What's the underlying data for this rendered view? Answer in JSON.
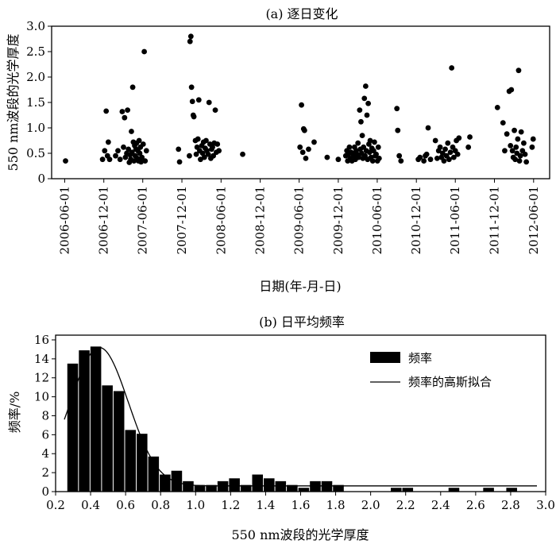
{
  "chart_data": [
    {
      "id": "a",
      "type": "scatter",
      "title": "(a) 逐日变化",
      "xlabel": "日期(年-月-日)",
      "ylabel": "550 nm波段的光学厚度",
      "x_axis_type": "date",
      "xlim": [
        "2006-04-01",
        "2012-08-15"
      ],
      "ylim": [
        0,
        3.0
      ],
      "x_ticks": [
        "2006-06-01",
        "2006-12-01",
        "2007-06-01",
        "2007-12-01",
        "2008-06-01",
        "2008-12-01",
        "2009-06-01",
        "2009-12-01",
        "2010-06-01",
        "2010-12-01",
        "2011-06-01",
        "2011-12-01",
        "2012-06-01"
      ],
      "y_ticks": [
        "0",
        "0.5",
        "1.0",
        "1.5",
        "2.0",
        "2.5",
        "3.0"
      ],
      "grid": false,
      "marker_color": "#000000",
      "points": [
        [
          "2006-06-05",
          0.35
        ],
        [
          "2006-11-25",
          0.38
        ],
        [
          "2006-12-05",
          0.55
        ],
        [
          "2006-12-12",
          1.33
        ],
        [
          "2006-12-18",
          0.45
        ],
        [
          "2006-12-22",
          0.72
        ],
        [
          "2006-12-28",
          0.38
        ],
        [
          "2007-01-25",
          0.45
        ],
        [
          "2007-02-05",
          0.55
        ],
        [
          "2007-02-15",
          0.38
        ],
        [
          "2007-02-25",
          1.32
        ],
        [
          "2007-03-03",
          0.62
        ],
        [
          "2007-03-08",
          1.2
        ],
        [
          "2007-03-12",
          0.42
        ],
        [
          "2007-03-18",
          0.5
        ],
        [
          "2007-03-22",
          1.35
        ],
        [
          "2007-03-26",
          0.58
        ],
        [
          "2007-03-30",
          0.32
        ],
        [
          "2007-04-03",
          0.47
        ],
        [
          "2007-04-06",
          0.38
        ],
        [
          "2007-04-09",
          0.93
        ],
        [
          "2007-04-12",
          0.52
        ],
        [
          "2007-04-15",
          1.8
        ],
        [
          "2007-04-18",
          0.72
        ],
        [
          "2007-04-21",
          0.35
        ],
        [
          "2007-04-24",
          0.65
        ],
        [
          "2007-04-27",
          0.45
        ],
        [
          "2007-04-30",
          0.58
        ],
        [
          "2007-05-03",
          0.7
        ],
        [
          "2007-05-06",
          0.4
        ],
        [
          "2007-05-09",
          0.55
        ],
        [
          "2007-05-12",
          0.35
        ],
        [
          "2007-05-15",
          0.75
        ],
        [
          "2007-05-18",
          0.5
        ],
        [
          "2007-05-21",
          0.62
        ],
        [
          "2007-05-24",
          0.33
        ],
        [
          "2007-05-28",
          0.42
        ],
        [
          "2007-06-03",
          0.68
        ],
        [
          "2007-06-08",
          2.5
        ],
        [
          "2007-06-12",
          0.35
        ],
        [
          "2007-06-18",
          0.55
        ],
        [
          "2007-11-15",
          0.58
        ],
        [
          "2007-11-20",
          0.33
        ],
        [
          "2008-01-05",
          0.45
        ],
        [
          "2008-01-08",
          2.7
        ],
        [
          "2008-01-12",
          2.8
        ],
        [
          "2008-01-15",
          1.8
        ],
        [
          "2008-01-19",
          1.52
        ],
        [
          "2008-01-23",
          1.25
        ],
        [
          "2008-01-26",
          1.22
        ],
        [
          "2008-02-02",
          0.75
        ],
        [
          "2008-02-06",
          0.48
        ],
        [
          "2008-02-10",
          0.62
        ],
        [
          "2008-02-14",
          0.78
        ],
        [
          "2008-02-18",
          1.55
        ],
        [
          "2008-02-22",
          0.55
        ],
        [
          "2008-02-26",
          0.38
        ],
        [
          "2008-03-03",
          0.65
        ],
        [
          "2008-03-07",
          0.5
        ],
        [
          "2008-03-11",
          0.72
        ],
        [
          "2008-03-15",
          0.42
        ],
        [
          "2008-03-19",
          0.6
        ],
        [
          "2008-03-23",
          0.75
        ],
        [
          "2008-03-27",
          0.55
        ],
        [
          "2008-04-02",
          0.48
        ],
        [
          "2008-04-06",
          1.5
        ],
        [
          "2008-04-10",
          0.68
        ],
        [
          "2008-04-14",
          0.4
        ],
        [
          "2008-04-18",
          0.58
        ],
        [
          "2008-04-22",
          0.62
        ],
        [
          "2008-04-26",
          0.45
        ],
        [
          "2008-04-30",
          0.7
        ],
        [
          "2008-05-05",
          1.35
        ],
        [
          "2008-05-10",
          0.52
        ],
        [
          "2008-05-15",
          0.68
        ],
        [
          "2008-05-22",
          0.55
        ],
        [
          "2008-09-10",
          0.48
        ],
        [
          "2009-06-05",
          0.62
        ],
        [
          "2009-06-12",
          1.45
        ],
        [
          "2009-06-18",
          0.52
        ],
        [
          "2009-06-22",
          0.98
        ],
        [
          "2009-06-26",
          0.95
        ],
        [
          "2009-07-02",
          0.4
        ],
        [
          "2009-07-15",
          0.58
        ],
        [
          "2009-08-10",
          0.72
        ],
        [
          "2009-10-10",
          0.42
        ],
        [
          "2009-12-01",
          0.38
        ],
        [
          "2010-01-05",
          0.45
        ],
        [
          "2010-01-10",
          0.55
        ],
        [
          "2010-01-14",
          0.35
        ],
        [
          "2010-01-18",
          0.48
        ],
        [
          "2010-01-22",
          0.62
        ],
        [
          "2010-01-26",
          0.4
        ],
        [
          "2010-01-30",
          0.52
        ],
        [
          "2010-02-03",
          0.35
        ],
        [
          "2010-02-07",
          0.5
        ],
        [
          "2010-02-11",
          0.45
        ],
        [
          "2010-02-15",
          0.62
        ],
        [
          "2010-02-19",
          0.38
        ],
        [
          "2010-02-23",
          0.55
        ],
        [
          "2010-02-27",
          0.48
        ],
        [
          "2010-03-03",
          0.7
        ],
        [
          "2010-03-07",
          0.42
        ],
        [
          "2010-03-11",
          1.35
        ],
        [
          "2010-03-14",
          0.58
        ],
        [
          "2010-03-17",
          1.12
        ],
        [
          "2010-03-20",
          0.5
        ],
        [
          "2010-03-23",
          0.85
        ],
        [
          "2010-03-26",
          0.4
        ],
        [
          "2010-03-29",
          0.62
        ],
        [
          "2010-04-02",
          1.58
        ],
        [
          "2010-04-05",
          0.45
        ],
        [
          "2010-04-08",
          1.82
        ],
        [
          "2010-04-11",
          0.55
        ],
        [
          "2010-04-14",
          1.25
        ],
        [
          "2010-04-17",
          0.38
        ],
        [
          "2010-04-20",
          1.48
        ],
        [
          "2010-04-23",
          0.68
        ],
        [
          "2010-04-26",
          0.52
        ],
        [
          "2010-04-29",
          0.75
        ],
        [
          "2010-05-03",
          0.42
        ],
        [
          "2010-05-07",
          0.6
        ],
        [
          "2010-05-11",
          0.35
        ],
        [
          "2010-05-15",
          0.55
        ],
        [
          "2010-05-19",
          0.72
        ],
        [
          "2010-05-23",
          0.45
        ],
        [
          "2010-05-27",
          0.48
        ],
        [
          "2010-06-02",
          0.35
        ],
        [
          "2010-06-06",
          0.62
        ],
        [
          "2010-06-10",
          0.4
        ],
        [
          "2010-09-01",
          1.38
        ],
        [
          "2010-09-05",
          0.95
        ],
        [
          "2010-09-12",
          0.45
        ],
        [
          "2010-09-20",
          0.35
        ],
        [
          "2010-12-10",
          0.38
        ],
        [
          "2010-12-18",
          0.42
        ],
        [
          "2011-01-05",
          0.35
        ],
        [
          "2011-01-12",
          0.45
        ],
        [
          "2011-01-18",
          0.48
        ],
        [
          "2011-01-25",
          1.0
        ],
        [
          "2011-02-05",
          0.38
        ],
        [
          "2011-02-28",
          0.75
        ],
        [
          "2011-03-08",
          0.4
        ],
        [
          "2011-03-15",
          0.55
        ],
        [
          "2011-03-22",
          0.62
        ],
        [
          "2011-03-28",
          0.42
        ],
        [
          "2011-04-03",
          0.5
        ],
        [
          "2011-04-09",
          0.35
        ],
        [
          "2011-04-15",
          0.58
        ],
        [
          "2011-04-21",
          0.45
        ],
        [
          "2011-04-27",
          0.7
        ],
        [
          "2011-05-03",
          0.38
        ],
        [
          "2011-05-09",
          0.52
        ],
        [
          "2011-05-15",
          2.18
        ],
        [
          "2011-05-20",
          0.62
        ],
        [
          "2011-05-25",
          0.42
        ],
        [
          "2011-06-01",
          0.55
        ],
        [
          "2011-06-06",
          0.75
        ],
        [
          "2011-06-12",
          0.48
        ],
        [
          "2011-06-18",
          0.8
        ],
        [
          "2011-08-01",
          0.62
        ],
        [
          "2011-08-08",
          0.82
        ],
        [
          "2011-12-15",
          1.4
        ],
        [
          "2012-01-10",
          1.1
        ],
        [
          "2012-01-18",
          0.55
        ],
        [
          "2012-01-28",
          0.88
        ],
        [
          "2012-02-08",
          1.72
        ],
        [
          "2012-02-14",
          0.65
        ],
        [
          "2012-02-18",
          1.75
        ],
        [
          "2012-02-23",
          0.55
        ],
        [
          "2012-02-27",
          0.42
        ],
        [
          "2012-03-03",
          0.95
        ],
        [
          "2012-03-07",
          0.38
        ],
        [
          "2012-03-11",
          0.62
        ],
        [
          "2012-03-15",
          0.5
        ],
        [
          "2012-03-19",
          0.78
        ],
        [
          "2012-03-23",
          2.13
        ],
        [
          "2012-03-27",
          0.35
        ],
        [
          "2012-03-31",
          0.45
        ],
        [
          "2012-04-04",
          0.92
        ],
        [
          "2012-04-10",
          0.55
        ],
        [
          "2012-04-16",
          0.7
        ],
        [
          "2012-04-22",
          0.48
        ],
        [
          "2012-04-28",
          0.33
        ],
        [
          "2012-05-25",
          0.62
        ],
        [
          "2012-05-30",
          0.78
        ]
      ]
    },
    {
      "id": "b",
      "type": "bar",
      "title": "(b) 日平均频率",
      "xlabel": "550 nm波段的光学厚度",
      "ylabel": "频率/%",
      "xlim": [
        0.2,
        3.0
      ],
      "ylim": [
        0,
        16.5
      ],
      "x_ticks": [
        "0.2",
        "0.4",
        "0.6",
        "0.8",
        "1.0",
        "1.2",
        "1.4",
        "1.6",
        "1.8",
        "2.0",
        "2.2",
        "2.4",
        "2.6",
        "2.8",
        "3.0"
      ],
      "y_ticks": [
        "0",
        "2",
        "4",
        "6",
        "8",
        "10",
        "12",
        "14",
        "16"
      ],
      "bin_width": 0.066,
      "bins": [
        {
          "center": 0.3,
          "value": 13.5
        },
        {
          "center": 0.366,
          "value": 14.9
        },
        {
          "center": 0.432,
          "value": 15.3
        },
        {
          "center": 0.498,
          "value": 11.2
        },
        {
          "center": 0.564,
          "value": 10.6
        },
        {
          "center": 0.63,
          "value": 6.5
        },
        {
          "center": 0.696,
          "value": 6.1
        },
        {
          "center": 0.762,
          "value": 3.7
        },
        {
          "center": 0.828,
          "value": 1.8
        },
        {
          "center": 0.894,
          "value": 2.2
        },
        {
          "center": 0.96,
          "value": 1.1
        },
        {
          "center": 1.026,
          "value": 0.7
        },
        {
          "center": 1.092,
          "value": 0.7
        },
        {
          "center": 1.158,
          "value": 1.1
        },
        {
          "center": 1.224,
          "value": 1.4
        },
        {
          "center": 1.29,
          "value": 0.7
        },
        {
          "center": 1.356,
          "value": 1.8
        },
        {
          "center": 1.422,
          "value": 1.4
        },
        {
          "center": 1.488,
          "value": 1.1
        },
        {
          "center": 1.554,
          "value": 0.7
        },
        {
          "center": 1.62,
          "value": 0.4
        },
        {
          "center": 1.686,
          "value": 1.1
        },
        {
          "center": 1.752,
          "value": 1.1
        },
        {
          "center": 1.818,
          "value": 0.7
        },
        {
          "center": 2.148,
          "value": 0.4
        },
        {
          "center": 2.214,
          "value": 0.4
        },
        {
          "center": 2.478,
          "value": 0.4
        },
        {
          "center": 2.676,
          "value": 0.4
        },
        {
          "center": 2.808,
          "value": 0.4
        }
      ],
      "fit_curve": {
        "name": "频率的高斯拟合",
        "y0": 0.6,
        "amplitude": 14.6,
        "center": 0.45,
        "sigma": 0.165
      },
      "legend": {
        "position": "top-right",
        "entries": [
          {
            "label": "频率",
            "symbol": "bar"
          },
          {
            "label": "频率的高斯拟合",
            "symbol": "line"
          }
        ]
      },
      "bar_color": "#000000"
    }
  ]
}
